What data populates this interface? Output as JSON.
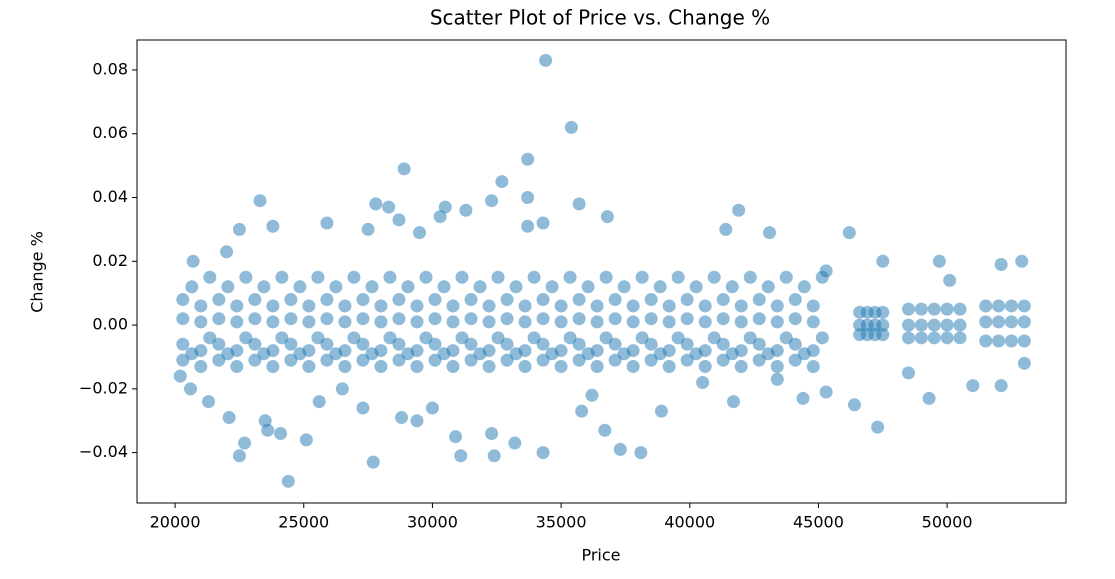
{
  "chart_data": {
    "type": "scatter",
    "title": "Scatter Plot of Price vs. Change %",
    "x_label": "Price",
    "y_label": "Change %",
    "xlim": [
      18520,
      54620
    ],
    "ylim": [
      -0.0558,
      0.0894
    ],
    "xticks": [
      20000,
      25000,
      30000,
      35000,
      40000,
      45000,
      50000
    ],
    "yticks": [
      {
        "value": -0.04,
        "label": "−0.04"
      },
      {
        "value": -0.02,
        "label": "−0.02"
      },
      {
        "value": 0,
        "label": "0.00"
      },
      0.02,
      0.04,
      0.06,
      0.08
    ],
    "color": "#1f77b4",
    "alpha": 0.5,
    "x": [
      20300,
      20300,
      20300,
      20300,
      21000,
      21000,
      21000,
      21000,
      21700,
      21700,
      21700,
      21700,
      22400,
      22400,
      22400,
      22400,
      23100,
      23100,
      23100,
      23100,
      23800,
      23800,
      23800,
      23800,
      24500,
      24500,
      24500,
      24500,
      25200,
      25200,
      25200,
      25200,
      25900,
      25900,
      25900,
      25900,
      26600,
      26600,
      26600,
      26600,
      27300,
      27300,
      27300,
      27300,
      28000,
      28000,
      28000,
      28000,
      28700,
      28700,
      28700,
      28700,
      29400,
      29400,
      29400,
      29400,
      30100,
      30100,
      30100,
      30100,
      30800,
      30800,
      30800,
      30800,
      31500,
      31500,
      31500,
      31500,
      32200,
      32200,
      32200,
      32200,
      32900,
      32900,
      32900,
      32900,
      33600,
      33600,
      33600,
      33600,
      34300,
      34300,
      34300,
      34300,
      35000,
      35000,
      35000,
      35000,
      35700,
      35700,
      35700,
      35700,
      36400,
      36400,
      36400,
      36400,
      37100,
      37100,
      37100,
      37100,
      37800,
      37800,
      37800,
      37800,
      38500,
      38500,
      38500,
      38500,
      39200,
      39200,
      39200,
      39200,
      39900,
      39900,
      39900,
      39900,
      40600,
      40600,
      40600,
      40600,
      41300,
      41300,
      41300,
      41300,
      42000,
      42000,
      42000,
      42000,
      42700,
      42700,
      42700,
      42700,
      43400,
      43400,
      43400,
      43400,
      44100,
      44100,
      44100,
      44100,
      44800,
      44800,
      44800,
      44800,
      20650,
      20650,
      21350,
      21350,
      22050,
      22050,
      22750,
      22750,
      23450,
      23450,
      24150,
      24150,
      24850,
      24850,
      25550,
      25550,
      26250,
      26250,
      26950,
      26950,
      27650,
      27650,
      28350,
      28350,
      29050,
      29050,
      29750,
      29750,
      30450,
      30450,
      31150,
      31150,
      31850,
      31850,
      32550,
      32550,
      33250,
      33250,
      33950,
      33950,
      34650,
      34650,
      35350,
      35350,
      36050,
      36050,
      36750,
      36750,
      37450,
      37450,
      38150,
      38150,
      38850,
      38850,
      39550,
      39550,
      40250,
      40250,
      40950,
      40950,
      41650,
      41650,
      42350,
      42350,
      43050,
      43050,
      43750,
      43750,
      44450,
      44450,
      45150,
      45150,
      46600,
      46600,
      46600,
      46900,
      46900,
      46900,
      47200,
      47200,
      47200,
      47500,
      47500,
      47500,
      48500,
      48500,
      48500,
      49000,
      49000,
      49000,
      49500,
      49500,
      49500,
      50000,
      50000,
      50000,
      50500,
      50500,
      50500,
      51500,
      51500,
      51500,
      52000,
      52000,
      52000,
      52500,
      52500,
      52500,
      53000,
      53000,
      53000,
      34400,
      35400,
      33700,
      28900,
      32700,
      23300,
      33700,
      27800,
      28300,
      30500,
      31300,
      41900,
      35700,
      25900,
      22500,
      23800,
      36800,
      43100,
      46200,
      30300,
      32300,
      34300,
      33700,
      28700,
      29500,
      41400,
      27500,
      47500,
      49700,
      52100,
      52900,
      20700,
      22000,
      45300,
      50100,
      24400,
      27700,
      22500,
      31100,
      32400,
      34300,
      37300,
      38100,
      22700,
      25100,
      33200,
      30900,
      32300,
      36700,
      23600,
      24100,
      47300,
      23500,
      22100,
      28800,
      29400,
      38900,
      46400,
      44400,
      49300,
      45300,
      48500,
      51000,
      52100,
      21300,
      20200,
      20600,
      53000,
      30000,
      25600,
      27300,
      35800,
      41700,
      40500,
      43400,
      36200,
      26500
    ],
    "values": [
      0.008,
      -0.006,
      0.002,
      -0.011,
      0.006,
      -0.008,
      0.001,
      -0.013,
      0.008,
      -0.006,
      0.002,
      -0.011,
      0.006,
      -0.008,
      0.001,
      -0.013,
      0.008,
      -0.006,
      0.002,
      -0.011,
      0.006,
      -0.008,
      0.001,
      -0.013,
      0.008,
      -0.006,
      0.002,
      -0.011,
      0.006,
      -0.008,
      0.001,
      -0.013,
      0.008,
      -0.006,
      0.002,
      -0.011,
      0.006,
      -0.008,
      0.001,
      -0.013,
      0.008,
      -0.006,
      0.002,
      -0.011,
      0.006,
      -0.008,
      0.001,
      -0.013,
      0.008,
      -0.006,
      0.002,
      -0.011,
      0.006,
      -0.008,
      0.001,
      -0.013,
      0.008,
      -0.006,
      0.002,
      -0.011,
      0.006,
      -0.008,
      0.001,
      -0.013,
      0.008,
      -0.006,
      0.002,
      -0.011,
      0.006,
      -0.008,
      0.001,
      -0.013,
      0.008,
      -0.006,
      0.002,
      -0.011,
      0.006,
      -0.008,
      0.001,
      -0.013,
      0.008,
      -0.006,
      0.002,
      -0.011,
      0.006,
      -0.008,
      0.001,
      -0.013,
      0.008,
      -0.006,
      0.002,
      -0.011,
      0.006,
      -0.008,
      0.001,
      -0.013,
      0.008,
      -0.006,
      0.002,
      -0.011,
      0.006,
      -0.008,
      0.001,
      -0.013,
      0.008,
      -0.006,
      0.002,
      -0.011,
      0.006,
      -0.008,
      0.001,
      -0.013,
      0.008,
      -0.006,
      0.002,
      -0.011,
      0.006,
      -0.008,
      0.001,
      -0.013,
      0.008,
      -0.006,
      0.002,
      -0.011,
      0.006,
      -0.008,
      0.001,
      -0.013,
      0.008,
      -0.006,
      0.002,
      -0.011,
      0.006,
      -0.008,
      0.001,
      -0.013,
      0.008,
      -0.006,
      0.002,
      -0.011,
      0.006,
      -0.008,
      0.001,
      -0.013,
      0.012,
      -0.009,
      0.015,
      -0.004,
      0.012,
      -0.009,
      0.015,
      -0.004,
      0.012,
      -0.009,
      0.015,
      -0.004,
      0.012,
      -0.009,
      0.015,
      -0.004,
      0.012,
      -0.009,
      0.015,
      -0.004,
      0.012,
      -0.009,
      0.015,
      -0.004,
      0.012,
      -0.009,
      0.015,
      -0.004,
      0.012,
      -0.009,
      0.015,
      -0.004,
      0.012,
      -0.009,
      0.015,
      -0.004,
      0.012,
      -0.009,
      0.015,
      -0.004,
      0.012,
      -0.009,
      0.015,
      -0.004,
      0.012,
      -0.009,
      0.015,
      -0.004,
      0.012,
      -0.009,
      0.015,
      -0.004,
      0.012,
      -0.009,
      0.015,
      -0.004,
      0.012,
      -0.009,
      0.015,
      -0.004,
      0.012,
      -0.009,
      0.015,
      -0.004,
      0.012,
      -0.009,
      0.015,
      -0.004,
      0.012,
      -0.009,
      0.015,
      -0.004,
      0.004,
      -0.003,
      0,
      0.004,
      -0.003,
      0,
      0.004,
      -0.003,
      0,
      0.004,
      -0.003,
      0,
      0.005,
      -0.004,
      0,
      0.005,
      -0.004,
      0,
      0.005,
      -0.004,
      0,
      0.005,
      -0.004,
      0,
      0.005,
      -0.004,
      0,
      0.006,
      -0.005,
      0.001,
      0.006,
      -0.005,
      0.001,
      0.006,
      -0.005,
      0.001,
      0.006,
      -0.005,
      0.001,
      0.083,
      0.062,
      0.052,
      0.049,
      0.045,
      0.039,
      0.04,
      0.038,
      0.037,
      0.037,
      0.036,
      0.036,
      0.038,
      0.032,
      0.03,
      0.031,
      0.034,
      0.029,
      0.029,
      0.034,
      0.039,
      0.032,
      0.031,
      0.033,
      0.029,
      0.03,
      0.03,
      0.02,
      0.02,
      0.019,
      0.02,
      0.02,
      0.023,
      0.017,
      0.014,
      -0.049,
      -0.043,
      -0.041,
      -0.041,
      -0.041,
      -0.04,
      -0.039,
      -0.04,
      -0.037,
      -0.036,
      -0.037,
      -0.035,
      -0.034,
      -0.033,
      -0.033,
      -0.034,
      -0.032,
      -0.03,
      -0.029,
      -0.029,
      -0.03,
      -0.027,
      -0.025,
      -0.023,
      -0.023,
      -0.021,
      -0.015,
      -0.019,
      -0.019,
      -0.024,
      -0.016,
      -0.02,
      -0.012,
      -0.026,
      -0.024,
      -0.026,
      -0.027,
      -0.024,
      -0.018,
      -0.017,
      -0.022,
      -0.02
    ]
  }
}
